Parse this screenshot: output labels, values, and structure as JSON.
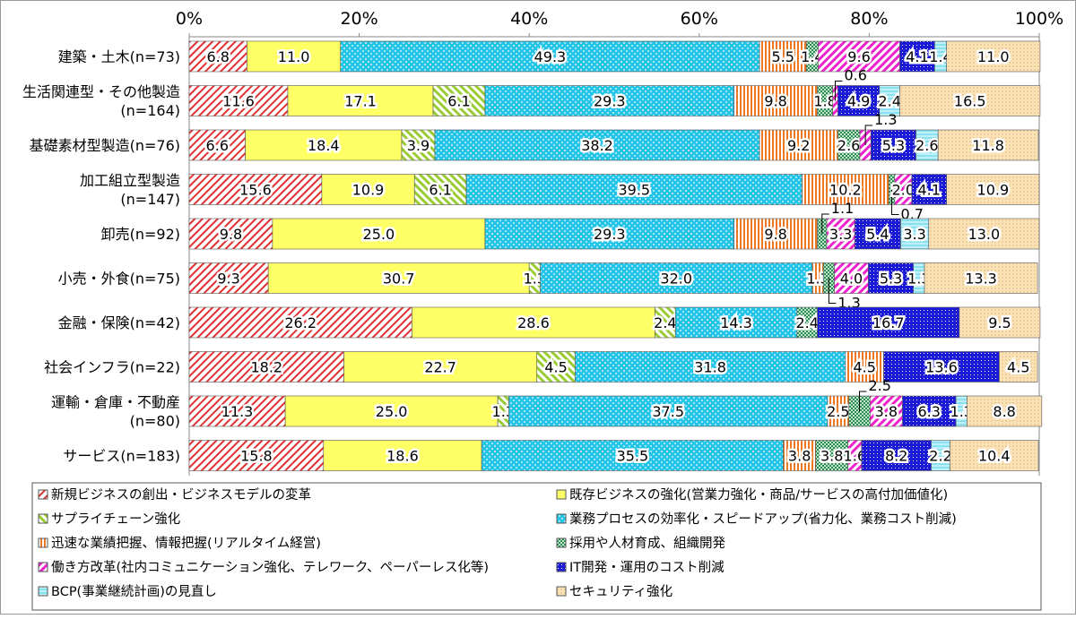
{
  "chart_data": {
    "type": "bar",
    "orientation": "horizontal",
    "stacked": "100%",
    "xlim": [
      0,
      100
    ],
    "xticks": [
      "0%",
      "20%",
      "40%",
      "60%",
      "80%",
      "100%"
    ],
    "grid": false,
    "legend_position": "bottom",
    "categories": [
      "建築・土木(n=73)",
      "生活関連型・その他製造\n(n=164)",
      "基礎素材型製造(n=76)",
      "加工組立型製造\n(n=147)",
      "卸売(n=92)",
      "小売・外食(n=75)",
      "金融・保険(n=42)",
      "社会インフラ(n=22)",
      "運輸・倉庫・不動産\n(n=80)",
      "サービス(n=183)"
    ],
    "series": [
      {
        "name": "新規ビジネスの創出・ビジネスモデルの変革",
        "color": "#e03030",
        "values": [
          6.8,
          11.6,
          6.6,
          15.6,
          9.8,
          9.3,
          26.2,
          18.2,
          11.3,
          15.8
        ]
      },
      {
        "name": "既存ビジネスの強化(営業力強化・商品/サービスの高付加価値化)",
        "color": "#ffff66",
        "values": [
          11.0,
          17.1,
          18.4,
          10.9,
          25.0,
          30.7,
          28.6,
          22.7,
          25.0,
          18.6
        ]
      },
      {
        "name": "サプライチェーン強化",
        "color": "#99cc33",
        "values": [
          0,
          6.1,
          3.9,
          6.1,
          0,
          1.3,
          2.4,
          4.5,
          1.3,
          0
        ]
      },
      {
        "name": "業務プロセスの効率化・スピードアップ(省力化、業務コスト削減)",
        "color": "#22c4e8",
        "values": [
          49.3,
          29.3,
          38.2,
          39.5,
          29.3,
          32.0,
          14.3,
          31.8,
          37.5,
          35.5
        ]
      },
      {
        "name": "迅速な業績把握、情報把握(リアルタイム経営)",
        "color": "#ee7722",
        "values": [
          5.5,
          9.8,
          9.2,
          10.2,
          9.8,
          1.3,
          0,
          4.5,
          2.5,
          3.8
        ]
      },
      {
        "name": "採用や人材育成、組織開発",
        "color": "#2e8b57",
        "values": [
          1.4,
          1.8,
          2.6,
          0.7,
          1.1,
          1.3,
          2.4,
          0,
          2.5,
          3.8
        ]
      },
      {
        "name": "働き方改革(社内コミュニケーション強化、テレワーク、ペーパーレス化等)",
        "color": "#ee22cc",
        "values": [
          9.6,
          0.6,
          1.3,
          2.0,
          3.3,
          4.0,
          0,
          0,
          3.8,
          1.6
        ]
      },
      {
        "name": "IT開発・運用のコスト削減",
        "color": "#1a1ad8",
        "values": [
          4.1,
          4.9,
          5.3,
          4.1,
          5.4,
          5.3,
          16.7,
          13.6,
          6.3,
          8.2
        ]
      },
      {
        "name": "BCP(事業継続計画)の見直し",
        "color": "#88e0f0",
        "values": [
          1.4,
          2.4,
          2.6,
          0,
          3.3,
          1.3,
          0,
          0,
          1.3,
          2.2
        ]
      },
      {
        "name": "セキュリティ強化",
        "color": "#f5cf90",
        "values": [
          11.0,
          16.5,
          11.8,
          10.9,
          13.0,
          13.3,
          9.5,
          4.5,
          8.8,
          10.4
        ]
      }
    ]
  }
}
